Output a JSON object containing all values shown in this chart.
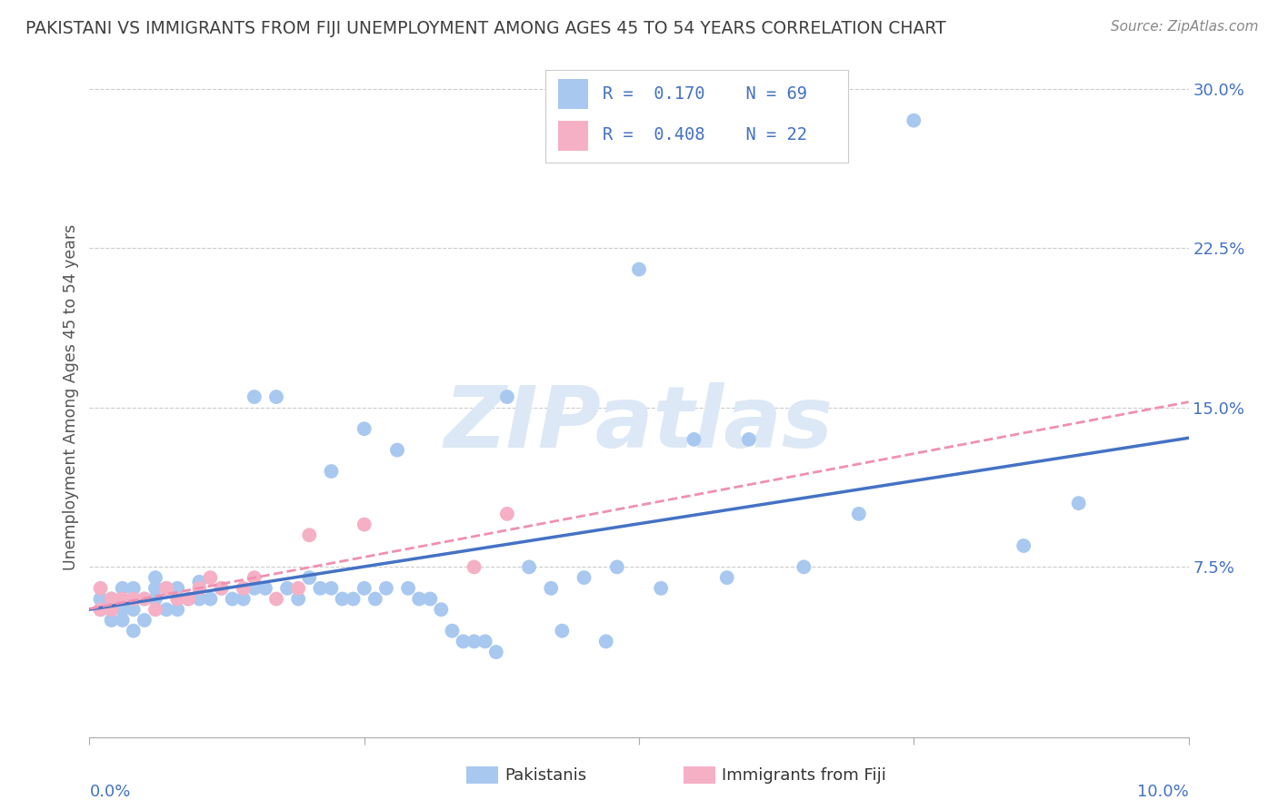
{
  "title": "PAKISTANI VS IMMIGRANTS FROM FIJI UNEMPLOYMENT AMONG AGES 45 TO 54 YEARS CORRELATION CHART",
  "source": "Source: ZipAtlas.com",
  "ylabel": "Unemployment Among Ages 45 to 54 years",
  "ytick_vals": [
    0.075,
    0.15,
    0.225,
    0.3
  ],
  "ytick_labels": [
    "7.5%",
    "15.0%",
    "22.5%",
    "30.0%"
  ],
  "xmin": 0.0,
  "xmax": 0.1,
  "ymin": -0.005,
  "ymax": 0.315,
  "pakistani_R": 0.17,
  "pakistani_N": 69,
  "fiji_R": 0.408,
  "fiji_N": 22,
  "pakistani_color": "#a8c8f0",
  "fiji_color": "#f5b0c5",
  "pakistani_line_color": "#4472c4",
  "fiji_line_color": "#f090b0",
  "grid_color": "#cccccc",
  "background_color": "#ffffff",
  "watermark_text": "ZIPatlas",
  "watermark_color": "#dce8f5",
  "legend_text_color": "#4472c4",
  "title_color": "#404040",
  "source_color": "#888888",
  "axis_label_color": "#555555",
  "axis_tick_color": "#4472c4",
  "pakistani_x": [
    0.001,
    0.001,
    0.002,
    0.002,
    0.003,
    0.003,
    0.003,
    0.004,
    0.004,
    0.004,
    0.005,
    0.005,
    0.006,
    0.006,
    0.006,
    0.007,
    0.007,
    0.008,
    0.008,
    0.009,
    0.01,
    0.01,
    0.011,
    0.012,
    0.013,
    0.014,
    0.015,
    0.015,
    0.016,
    0.017,
    0.018,
    0.019,
    0.02,
    0.021,
    0.022,
    0.022,
    0.023,
    0.024,
    0.025,
    0.025,
    0.026,
    0.027,
    0.028,
    0.029,
    0.03,
    0.031,
    0.032,
    0.033,
    0.034,
    0.035,
    0.036,
    0.037,
    0.038,
    0.04,
    0.042,
    0.043,
    0.045,
    0.047,
    0.048,
    0.05,
    0.052,
    0.055,
    0.058,
    0.06,
    0.065,
    0.07,
    0.075,
    0.085,
    0.09
  ],
  "pakistani_y": [
    0.055,
    0.06,
    0.05,
    0.06,
    0.05,
    0.055,
    0.065,
    0.045,
    0.055,
    0.065,
    0.05,
    0.06,
    0.06,
    0.065,
    0.07,
    0.055,
    0.065,
    0.055,
    0.065,
    0.06,
    0.06,
    0.068,
    0.06,
    0.065,
    0.06,
    0.06,
    0.065,
    0.155,
    0.065,
    0.155,
    0.065,
    0.06,
    0.07,
    0.065,
    0.065,
    0.12,
    0.06,
    0.06,
    0.065,
    0.14,
    0.06,
    0.065,
    0.13,
    0.065,
    0.06,
    0.06,
    0.055,
    0.045,
    0.04,
    0.04,
    0.04,
    0.035,
    0.155,
    0.075,
    0.065,
    0.045,
    0.07,
    0.04,
    0.075,
    0.215,
    0.065,
    0.135,
    0.07,
    0.135,
    0.075,
    0.1,
    0.285,
    0.085,
    0.105
  ],
  "fiji_x": [
    0.001,
    0.001,
    0.002,
    0.002,
    0.003,
    0.004,
    0.005,
    0.006,
    0.007,
    0.008,
    0.009,
    0.01,
    0.011,
    0.012,
    0.014,
    0.015,
    0.017,
    0.019,
    0.02,
    0.025,
    0.035,
    0.038
  ],
  "fiji_y": [
    0.055,
    0.065,
    0.055,
    0.06,
    0.06,
    0.06,
    0.06,
    0.055,
    0.065,
    0.06,
    0.06,
    0.065,
    0.07,
    0.065,
    0.065,
    0.07,
    0.06,
    0.065,
    0.09,
    0.095,
    0.075,
    0.1
  ]
}
